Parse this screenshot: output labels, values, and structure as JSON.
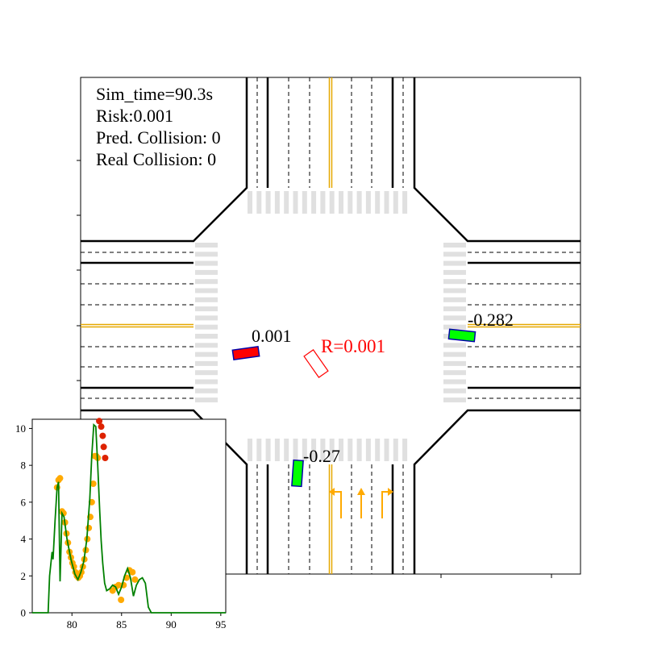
{
  "hud": {
    "sim_time": "Sim_time=90.3s",
    "risk": "Risk:0.001",
    "pred_collision": "Pred. Collision: 0",
    "real_collision": "Real Collision: 0"
  },
  "vehicles": [
    {
      "id": "ego",
      "label": "0.001",
      "fill": "#ff0000",
      "stroke": "#0000aa"
    },
    {
      "id": "east",
      "label": "-0.282",
      "fill": "#00ff00",
      "stroke": "#0000aa"
    },
    {
      "id": "south",
      "label": "-0.27",
      "fill": "#00ff00",
      "stroke": "#0000aa"
    }
  ],
  "predicted_box": {
    "label": "R=0.001",
    "stroke": "#ff0000"
  },
  "colors": {
    "centerline": "#e6a800",
    "arrow": "#ffaa00",
    "crosswalk": "#e0e0e0",
    "plot_line": "#008000",
    "plot_marker_orange": "#ffaa00",
    "plot_marker_red": "#dd2200"
  },
  "chart_data": {
    "type": "line",
    "title": "",
    "xlabel": "",
    "ylabel": "",
    "xlim": [
      76,
      95.5
    ],
    "ylim": [
      0,
      10.5
    ],
    "xticks": [
      "80",
      "85",
      "90",
      "95"
    ],
    "yticks": [
      "0",
      "2",
      "4",
      "6",
      "8",
      "10"
    ],
    "series": [
      {
        "style": "line",
        "x": [
          76.0,
          77.6,
          77.75,
          78.0,
          78.1,
          78.3,
          78.5,
          78.65,
          78.75,
          78.8,
          79.0,
          79.2,
          79.5,
          79.9,
          80.3,
          80.6,
          80.9,
          81.2,
          81.5,
          81.8,
          82.0,
          82.2,
          82.4,
          82.6,
          82.8,
          82.95,
          83.1,
          83.3,
          83.5,
          83.8,
          84.1,
          84.4,
          84.7,
          85.0,
          85.3,
          85.6,
          85.9,
          86.2,
          86.5,
          86.8,
          87.1,
          87.4,
          87.7,
          88.0,
          90.3,
          95.5
        ],
        "y": [
          0.0,
          0.0,
          2.0,
          3.3,
          2.9,
          5.0,
          6.8,
          7.1,
          3.6,
          1.7,
          5.4,
          5.2,
          4.0,
          2.9,
          2.1,
          1.8,
          2.2,
          2.8,
          4.0,
          6.2,
          8.5,
          10.2,
          10.1,
          8.0,
          5.5,
          3.9,
          2.7,
          1.6,
          1.2,
          1.3,
          1.5,
          1.4,
          1.0,
          1.4,
          2.0,
          2.4,
          1.9,
          0.9,
          1.5,
          1.8,
          1.9,
          1.6,
          0.3,
          0.0,
          0.0,
          0.0
        ]
      },
      {
        "style": "markers-orange",
        "x": [
          78.5,
          78.65,
          78.8,
          79.0,
          79.15,
          79.3,
          79.45,
          79.6,
          79.75,
          79.9,
          80.05,
          80.2,
          80.35,
          80.5,
          80.65,
          80.8,
          80.95,
          81.1,
          81.25,
          81.4,
          81.55,
          81.7,
          81.85,
          82.0,
          82.15,
          82.3,
          82.45,
          82.6,
          84.1,
          84.4,
          84.7,
          84.95,
          85.2,
          85.5,
          85.8,
          86.1,
          86.35
        ],
        "y": [
          6.8,
          7.2,
          7.3,
          5.5,
          5.4,
          4.9,
          4.3,
          3.8,
          3.3,
          3.0,
          2.7,
          2.5,
          2.2,
          2.0,
          1.9,
          2.0,
          2.2,
          2.5,
          2.9,
          3.4,
          4.0,
          4.6,
          5.2,
          6.0,
          7.0,
          8.5,
          8.5,
          8.4,
          1.2,
          1.4,
          1.5,
          0.7,
          1.5,
          1.9,
          2.3,
          2.2,
          1.8
        ]
      },
      {
        "style": "markers-red",
        "x": [
          82.75,
          82.95,
          83.1,
          83.2,
          83.35
        ],
        "y": [
          10.4,
          10.1,
          9.6,
          9.0,
          8.4
        ]
      }
    ]
  }
}
